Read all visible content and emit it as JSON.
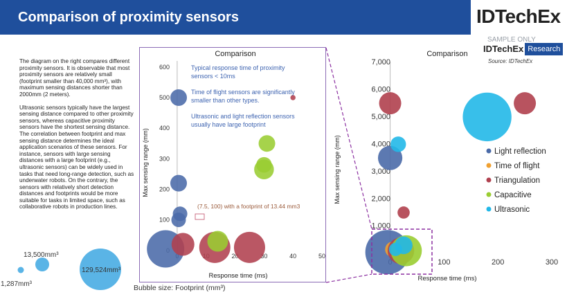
{
  "header": {
    "title": "Comparison of proximity sensors",
    "logo": "IDTechEx",
    "sample_label": "SAMPLE ONLY",
    "logo_small": "IDTechEx",
    "logo_research": "Research",
    "source": "Source: IDTechEx"
  },
  "description": {
    "paragraph1": "The diagram on the right compares different proximity sensors. It is observable that most proximity sensors are relatively small (footprint smaller than 40,000 mm³), with maximum sensing distances shorter than 2000mm (2 meters).",
    "paragraph2": "Ultrasonic sensors typically have the largest sensing distance compared to other proximity sensors, whereas capacitive proximity sensors have the shortest sensing distance. The correlation between footprint and max sensing distance determines the ideal application scenarios of these sensors. For instance, sensors with large sensing distances with a large footprint (e.g., ultrasonic sensors) can be widely used in tasks that need long-range detection, such as underwater robots. On the contrary, the sensors with relatively short detection distances and footprints would be more suitable for tasks in limited space, such as collaborative robots in production lines."
  },
  "bubble_size_legend": {
    "items": [
      "1,287mm³",
      "13,500mm³",
      "129,524mm³"
    ],
    "footprints": [
      1287,
      13500,
      129524
    ],
    "note": "Bubble size: Footprint (mm³)"
  },
  "colors": {
    "Light reflection": "#4a6aa8",
    "Time of flight": "#f0a030",
    "Triangulation": "#b0404e",
    "Capacitive": "#9acd32",
    "Ultrasonic": "#22b8e8",
    "banner": "#1f4f9c",
    "zoom_box": "#8b2fa0",
    "annotation": "#3d63b0",
    "callout": "#9a5a3a"
  },
  "chart_data": [
    {
      "type": "scatter",
      "title": "Comparison",
      "xlabel": "Response time (ms)",
      "ylabel": "Max sensing range (mm)",
      "xlim": [
        -5,
        50
      ],
      "ylim": [
        -30,
        620
      ],
      "xticks": [
        "0",
        "10",
        "20",
        "30",
        "40",
        "50"
      ],
      "yticks": [
        "0",
        "100",
        "200",
        "300",
        "400",
        "500",
        "600"
      ],
      "annotations": [
        "Typical response time of proximity sensors < 10ms",
        "Time of flight sensors are significantly smaller than other types.",
        "Ultrasonic and light reflection sensors usually have large footprint"
      ],
      "callout": "(7.5, 100) with a footprint of 13.44 mm3",
      "series": [
        {
          "name": "Light reflection",
          "points": [
            {
              "x": 0.5,
              "y": 500,
              "r": 0.8
            },
            {
              "x": 0.5,
              "y": 220,
              "r": 0.8
            },
            {
              "x": 1,
              "y": 120,
              "r": 0.7
            },
            {
              "x": 0.5,
              "y": 100,
              "r": 0.7
            },
            {
              "x": -4,
              "y": 5,
              "r": 1.8
            }
          ]
        },
        {
          "name": "Triangulation",
          "points": [
            {
              "x": 2,
              "y": 20,
              "r": 1.1
            },
            {
              "x": 13,
              "y": 10,
              "r": 1.5
            },
            {
              "x": 25,
              "y": 10,
              "r": 1.5
            },
            {
              "x": 40,
              "y": 500,
              "r": 0.25
            }
          ]
        },
        {
          "name": "Capacitive",
          "points": [
            {
              "x": 30,
              "y": 265,
              "r": 0.95
            },
            {
              "x": 30,
              "y": 280,
              "r": 0.75
            },
            {
              "x": 31,
              "y": 350,
              "r": 0.8
            },
            {
              "x": 14,
              "y": 30,
              "r": 1.0
            }
          ]
        }
      ]
    },
    {
      "type": "scatter",
      "title": "Comparison",
      "xlabel": "Response time (ms)",
      "ylabel": "Max sensing range (mm)",
      "xlim": [
        -20,
        300
      ],
      "ylim": [
        -300,
        7000
      ],
      "xticks": [
        "0",
        "100",
        "200",
        "300"
      ],
      "yticks": [
        "1,000",
        "2,000",
        "3,000",
        "4,000",
        "5,000",
        "6,000",
        "7,000"
      ],
      "legend_position": "right",
      "legend": [
        "Light reflection",
        "Time of flight",
        "Triangulation",
        "Capacitive",
        "Ultrasonic"
      ],
      "series": [
        {
          "name": "Light reflection",
          "points": [
            {
              "x": 0,
              "y": 3500,
              "r": 1.1
            },
            {
              "x": -5,
              "y": 50,
              "r": 2.0
            }
          ]
        },
        {
          "name": "Time of flight",
          "points": [
            {
              "x": 5,
              "y": 150,
              "r": 0.7
            }
          ]
        },
        {
          "name": "Triangulation",
          "points": [
            {
              "x": 0,
              "y": 5500,
              "r": 1.0
            },
            {
              "x": 250,
              "y": 5500,
              "r": 1.0
            },
            {
              "x": 25,
              "y": 1500,
              "r": 0.55
            },
            {
              "x": 20,
              "y": 100,
              "r": 1.2
            }
          ]
        },
        {
          "name": "Capacitive",
          "points": [
            {
              "x": 30,
              "y": 100,
              "r": 1.4
            }
          ]
        },
        {
          "name": "Ultrasonic",
          "points": [
            {
              "x": 180,
              "y": 5000,
              "r": 2.2
            },
            {
              "x": 15,
              "y": 4000,
              "r": 0.7
            },
            {
              "x": 25,
              "y": 300,
              "r": 0.8
            },
            {
              "x": 10,
              "y": 150,
              "r": 0.6
            }
          ]
        }
      ]
    }
  ]
}
